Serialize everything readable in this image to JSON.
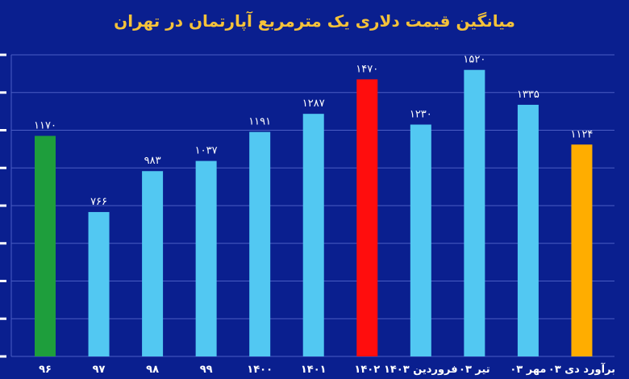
{
  "chart_data": {
    "type": "bar",
    "title": "میانگین قیمت دلاری یک مترمربع آپارتمان در تهران",
    "categories": [
      "۹۶",
      "۹۷",
      "۹۸",
      "۹۹",
      "۱۴۰۰",
      "۱۴۰۱",
      "۱۴۰۲",
      "فروردین ۱۴۰۳",
      "تیر ۰۳",
      "مهر ۰۳",
      "برآورد دی ۰۳"
    ],
    "values": [
      1170,
      766,
      983,
      1037,
      1191,
      1287,
      1470,
      1230,
      1520,
      1335,
      1124
    ],
    "value_labels": [
      "۱۱۷۰",
      "۷۶۶",
      "۹۸۳",
      "۱۰۳۷",
      "۱۱۹۱",
      "۱۲۸۷",
      "۱۴۷۰",
      "۱۲۳۰",
      "۱۵۲۰",
      "۱۳۳۵",
      "۱۱۲۴"
    ],
    "bar_colors": [
      "#1e9e3c",
      "#52c8f2",
      "#52c8f2",
      "#52c8f2",
      "#52c8f2",
      "#52c8f2",
      "#ff0d0d",
      "#52c8f2",
      "#52c8f2",
      "#52c8f2",
      "#ffad00"
    ],
    "ylim": [
      0,
      1600
    ],
    "grid": true,
    "xlabel": "",
    "ylabel": ""
  },
  "colors": {
    "background": "#0a1f8f",
    "title": "#f5c23a",
    "text": "#ffffff",
    "grid": "#4a5dc4"
  }
}
